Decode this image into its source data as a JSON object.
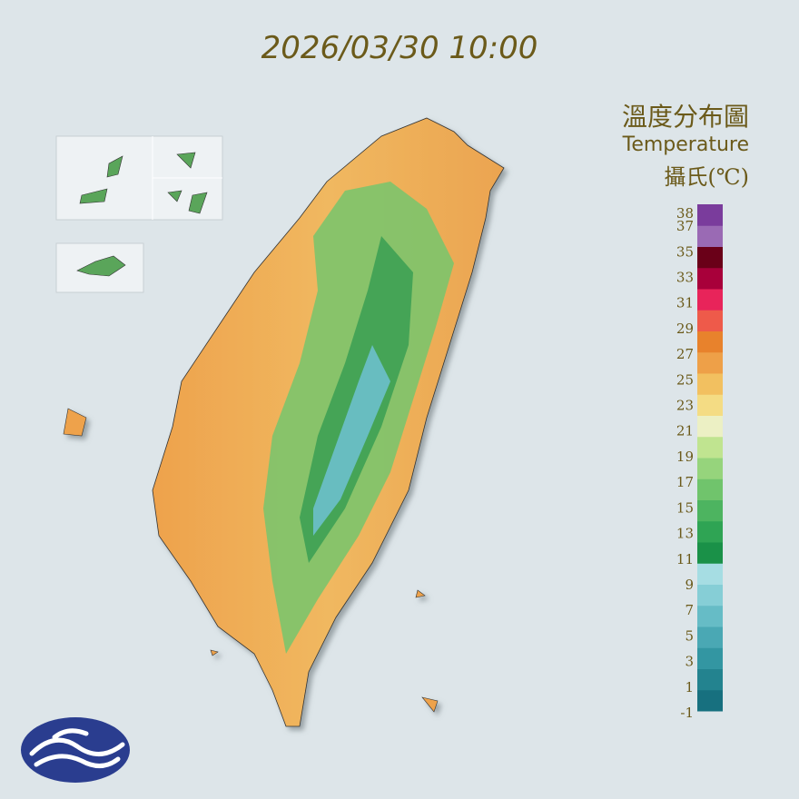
{
  "timestamp": "2026/03/30 10:00",
  "legend": {
    "title": "溫度分布圖",
    "subtitle": "Temperature",
    "unit": "攝氏(℃)",
    "ticks": [
      38,
      37,
      35,
      33,
      31,
      29,
      27,
      25,
      23,
      21,
      19,
      17,
      15,
      13,
      11,
      9,
      7,
      5,
      3,
      1,
      -1
    ],
    "colors": [
      "#17707f",
      "#23838f",
      "#3396a2",
      "#4aa8b4",
      "#66bcc6",
      "#86ced6",
      "#a6dde3",
      "#1a9148",
      "#2fa454",
      "#4db460",
      "#70c46c",
      "#96d47c",
      "#c0e490",
      "#ecf0c4",
      "#f4dc84",
      "#f2c060",
      "#eea048",
      "#e8822c",
      "#ee5a4a",
      "#e8245a",
      "#a8003a",
      "#6a0018",
      "#9a6ab4",
      "#7a3c9c"
    ]
  }
}
